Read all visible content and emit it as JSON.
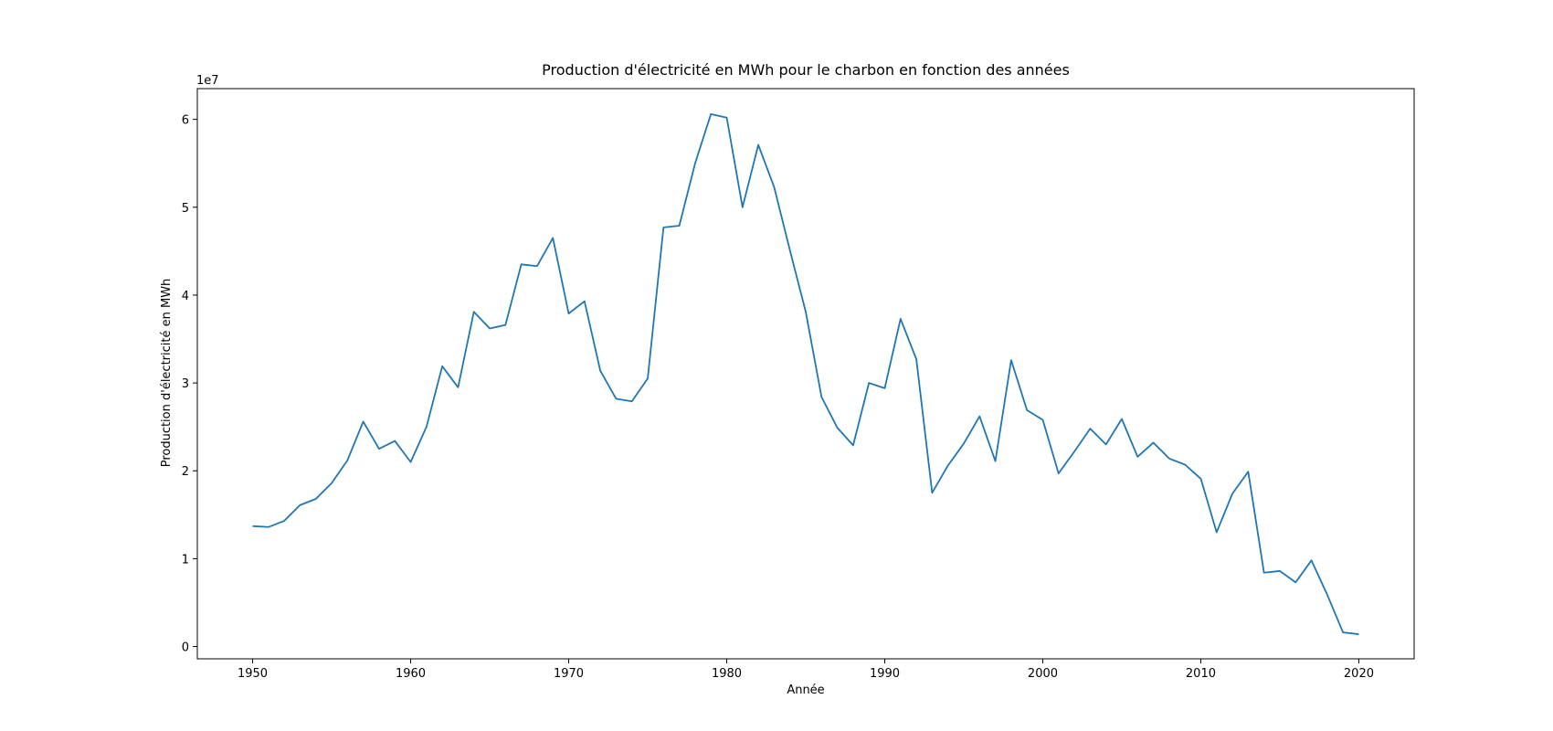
{
  "chart_data": {
    "type": "line",
    "title": "Production d'électricité en MWh pour le charbon en fonction des années",
    "xlabel": "Année",
    "ylabel": "Production d'électricité en MWh",
    "y_offset_label": "1e7",
    "xlim": [
      1946.5,
      2023.5
    ],
    "ylim": [
      -1400000,
      63500000
    ],
    "x_ticks": [
      1950,
      1960,
      1970,
      1980,
      1990,
      2000,
      2010,
      2020
    ],
    "y_ticks": [
      0,
      10000000,
      20000000,
      30000000,
      40000000,
      50000000,
      60000000
    ],
    "y_tick_labels": [
      "0",
      "1",
      "2",
      "3",
      "4",
      "5",
      "6"
    ],
    "grid": false,
    "line_color": "#1f77b4",
    "series": [
      {
        "x": [
          1950,
          1951,
          1952,
          1953,
          1954,
          1955,
          1956,
          1957,
          1958,
          1959,
          1960,
          1961,
          1962,
          1963,
          1964,
          1965,
          1966,
          1967,
          1968,
          1969,
          1970,
          1971,
          1972,
          1973,
          1974,
          1975,
          1976,
          1977,
          1978,
          1979,
          1980,
          1981,
          1982,
          1983,
          1984,
          1985,
          1986,
          1987,
          1988,
          1989,
          1990,
          1991,
          1992,
          1993,
          1994,
          1995,
          1996,
          1997,
          1998,
          1999,
          2000,
          2001,
          2002,
          2003,
          2004,
          2005,
          2006,
          2007,
          2008,
          2009,
          2010,
          2011,
          2012,
          2013,
          2014,
          2015,
          2016,
          2017,
          2018,
          2019,
          2020
        ],
        "values": [
          13700000,
          13600000,
          14300000,
          16100000,
          16800000,
          18600000,
          21200000,
          25600000,
          22500000,
          23400000,
          21000000,
          25000000,
          31900000,
          29500000,
          38100000,
          36200000,
          36600000,
          43500000,
          43300000,
          46500000,
          37900000,
          39300000,
          31400000,
          28200000,
          27900000,
          30500000,
          47700000,
          47900000,
          55000000,
          60600000,
          60200000,
          50000000,
          57100000,
          52300000,
          45100000,
          38100000,
          28400000,
          24900000,
          22900000,
          30000000,
          29400000,
          37300000,
          32700000,
          17500000,
          20600000,
          23100000,
          26200000,
          21100000,
          32600000,
          26900000,
          25800000,
          19700000,
          22200000,
          24800000,
          23000000,
          25900000,
          21600000,
          23200000,
          21400000,
          20700000,
          19100000,
          13000000,
          17400000,
          19900000,
          8400000,
          8600000,
          7300000,
          9800000,
          5900000,
          1600000,
          1400000
        ]
      }
    ]
  }
}
